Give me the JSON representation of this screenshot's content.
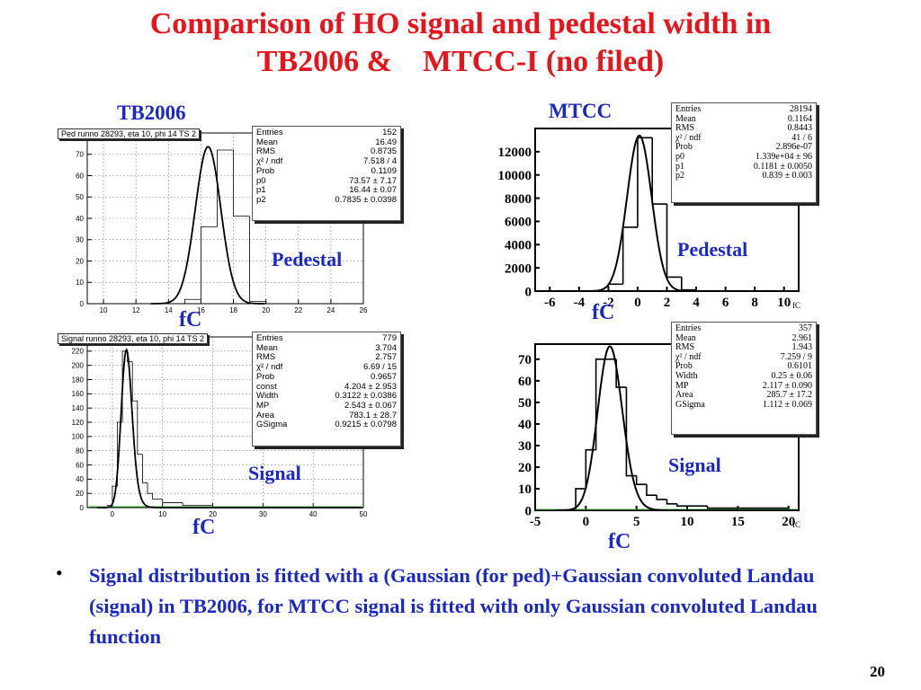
{
  "slide": {
    "title_line1": "Comparison of HO signal and pedestal width in",
    "title_line2": "TB2006 &    MTCC-I (no filed)",
    "tb_label": "TB2006",
    "mtcc_label": "MTCC",
    "bullet_symbol": "•",
    "bullet_text": "Signal distribution is fitted with a (Gaussian (for ped)+Gaussian convoluted Landau (signal) in TB2006, for MTCC signal is fitted with only Gaussian convoluted Landau function",
    "page_number": "20"
  },
  "chart_data": [
    {
      "type": "bar",
      "id": "tb_ped",
      "histogram_title": "Ped runno 28293, eta 10, phi 14 TS 2",
      "label": "Pedestal",
      "xlabel": "fC",
      "xlim": [
        9,
        26
      ],
      "ylim": [
        0,
        80
      ],
      "xticks": [
        10,
        12,
        14,
        16,
        18,
        20,
        22,
        24,
        26
      ],
      "yticks": [
        0,
        10,
        20,
        30,
        40,
        50,
        60,
        70
      ],
      "grid": true,
      "bins": [
        {
          "x0": 15,
          "x1": 16,
          "y": 2
        },
        {
          "x0": 16,
          "x1": 17,
          "y": 36
        },
        {
          "x0": 17,
          "x1": 18,
          "y": 72
        },
        {
          "x0": 18,
          "x1": 19,
          "y": 41
        },
        {
          "x0": 19,
          "x1": 20,
          "y": 1
        }
      ],
      "fit": {
        "function": "gaussian",
        "amp": 73.57,
        "mean": 16.44,
        "sigma": 0.7835
      },
      "stats": [
        {
          "k": "Entries",
          "v": "152"
        },
        {
          "k": "Mean",
          "v": "16.49"
        },
        {
          "k": "RMS",
          "v": "0.8735"
        },
        {
          "k": "χ² / ndf",
          "v": "7.518 / 4"
        },
        {
          "k": "Prob",
          "v": "0.1109"
        },
        {
          "k": "p0",
          "v": "73.57 ± 7.17"
        },
        {
          "k": "p1",
          "v": "16.44 ± 0.07"
        },
        {
          "k": "p2",
          "v": "0.7835 ± 0.0398"
        }
      ]
    },
    {
      "type": "bar",
      "id": "tb_sig",
      "histogram_title": "Signal runno 28293, eta 10, phi 14 TS 2",
      "label": "Signal",
      "xlabel": "fC",
      "xlim": [
        -5,
        50
      ],
      "ylim": [
        0,
        240
      ],
      "xticks": [
        0,
        10,
        20,
        30,
        40,
        50
      ],
      "yticks": [
        0,
        20,
        40,
        60,
        80,
        100,
        120,
        140,
        160,
        180,
        200,
        220
      ],
      "grid": true,
      "bins": [
        {
          "x0": -1,
          "x1": 0,
          "y": 3
        },
        {
          "x0": 0,
          "x1": 1,
          "y": 30
        },
        {
          "x0": 1,
          "x1": 2,
          "y": 120
        },
        {
          "x0": 2,
          "x1": 3,
          "y": 220
        },
        {
          "x0": 3,
          "x1": 4,
          "y": 205
        },
        {
          "x0": 4,
          "x1": 5,
          "y": 150
        },
        {
          "x0": 5,
          "x1": 6,
          "y": 75
        },
        {
          "x0": 6,
          "x1": 7,
          "y": 35
        },
        {
          "x0": 7,
          "x1": 8,
          "y": 20
        },
        {
          "x0": 8,
          "x1": 10,
          "y": 12
        },
        {
          "x0": 10,
          "x1": 14,
          "y": 7
        },
        {
          "x0": 14,
          "x1": 20,
          "y": 3
        },
        {
          "x0": 20,
          "x1": 30,
          "y": 1
        }
      ],
      "fit": {
        "function": "landau_gauss",
        "mp": 2.543,
        "width": 0.3122,
        "gsigma": 0.9215,
        "peak": 222
      },
      "stats": [
        {
          "k": "Entries",
          "v": "779"
        },
        {
          "k": "Mean",
          "v": "3.704"
        },
        {
          "k": "RMS",
          "v": "2.757"
        },
        {
          "k": "χ² / ndf",
          "v": "6.69 / 15"
        },
        {
          "k": "Prob",
          "v": "0.9657"
        },
        {
          "k": "const",
          "v": "4.204 ± 2.953"
        },
        {
          "k": "Width",
          "v": "0.3122 ± 0.0386"
        },
        {
          "k": "MP",
          "v": "2.543 ± 0.067"
        },
        {
          "k": "Area",
          "v": "783.1 ± 28.7"
        },
        {
          "k": "GSigma",
          "v": "0.9215 ± 0.0798"
        }
      ]
    },
    {
      "type": "bar",
      "id": "mtcc_ped",
      "label": "Pedestal",
      "xlabel": "fC",
      "axis_corner_label": "fC",
      "xlim": [
        -7,
        11
      ],
      "ylim": [
        0,
        14000
      ],
      "xticks": [
        -6,
        -4,
        -2,
        0,
        2,
        4,
        6,
        8,
        10
      ],
      "yticks": [
        0,
        2000,
        4000,
        6000,
        8000,
        10000,
        12000
      ],
      "grid": false,
      "bins": [
        {
          "x0": -2,
          "x1": -1,
          "y": 600
        },
        {
          "x0": -1,
          "x1": 0,
          "y": 5500
        },
        {
          "x0": 0,
          "x1": 1,
          "y": 13200
        },
        {
          "x0": 1,
          "x1": 2,
          "y": 7500
        },
        {
          "x0": 2,
          "x1": 3,
          "y": 1200
        },
        {
          "x0": 3,
          "x1": 4,
          "y": 100
        }
      ],
      "fit": {
        "function": "gaussian",
        "amp": 13390,
        "mean": 0.1181,
        "sigma": 0.839
      },
      "stats": [
        {
          "k": "Entries",
          "v": "28194"
        },
        {
          "k": "Mean",
          "v": "0.1164"
        },
        {
          "k": "RMS",
          "v": "0.8443"
        },
        {
          "k": "χ² / ndf",
          "v": "41 / 6"
        },
        {
          "k": "Prob",
          "v": "2.896e-07"
        },
        {
          "k": "p0",
          "v": "1.339e+04 ± 96"
        },
        {
          "k": "p1",
          "v": "0.1181 ± 0.0050"
        },
        {
          "k": "p2",
          "v": "0.839 ± 0.003"
        }
      ]
    },
    {
      "type": "bar",
      "id": "mtcc_sig",
      "label": "Signal",
      "xlabel": "fC",
      "axis_corner_label": "fC",
      "xlim": [
        -5,
        21
      ],
      "ylim": [
        0,
        77
      ],
      "xticks": [
        -5,
        0,
        5,
        10,
        15,
        20
      ],
      "yticks": [
        0,
        10,
        20,
        30,
        40,
        50,
        60,
        70
      ],
      "grid": false,
      "bins": [
        {
          "x0": -1,
          "x1": 0,
          "y": 10
        },
        {
          "x0": 0,
          "x1": 1,
          "y": 28
        },
        {
          "x0": 1,
          "x1": 2,
          "y": 70
        },
        {
          "x0": 2,
          "x1": 3,
          "y": 70
        },
        {
          "x0": 3,
          "x1": 4,
          "y": 57
        },
        {
          "x0": 4,
          "x1": 5,
          "y": 16
        },
        {
          "x0": 5,
          "x1": 6,
          "y": 12
        },
        {
          "x0": 6,
          "x1": 7,
          "y": 7
        },
        {
          "x0": 7,
          "x1": 8,
          "y": 5
        },
        {
          "x0": 8,
          "x1": 9,
          "y": 3
        },
        {
          "x0": 9,
          "x1": 12,
          "y": 2
        },
        {
          "x0": 12,
          "x1": 20,
          "y": 1
        }
      ],
      "fit": {
        "function": "landau_gauss",
        "mp": 2.117,
        "width": 0.25,
        "gsigma": 1.112,
        "peak": 76
      },
      "stats": [
        {
          "k": "Entries",
          "v": "357"
        },
        {
          "k": "Mean",
          "v": "2.961"
        },
        {
          "k": "RMS",
          "v": "1.943"
        },
        {
          "k": "χ² / ndf",
          "v": "7.259 / 9"
        },
        {
          "k": "Prob",
          "v": "0.6101"
        },
        {
          "k": "Width",
          "v": "0.25 ± 0.06"
        },
        {
          "k": "MP",
          "v": "2.117 ± 0.090"
        },
        {
          "k": "Area",
          "v": "285.7 ± 17.2"
        },
        {
          "k": "GSigma",
          "v": "1.112 ± 0.069"
        }
      ]
    }
  ]
}
